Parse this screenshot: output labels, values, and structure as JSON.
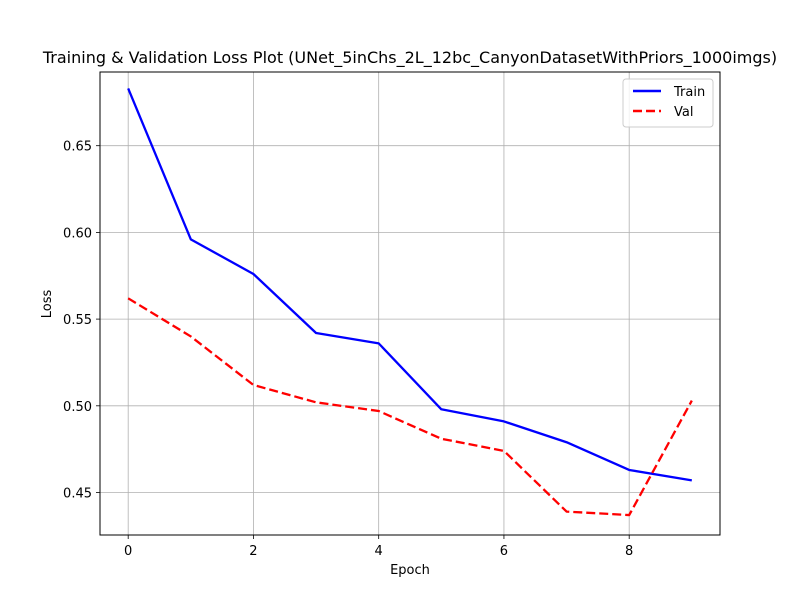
{
  "chart_data": {
    "type": "line",
    "title": "Training & Validation Loss Plot (UNet_5inChs_2L_12bc_CanyonDatasetWithPriors_1000imgs)",
    "xlabel": "Epoch",
    "ylabel": "Loss",
    "xlim": [
      -0.45,
      9.45
    ],
    "ylim": [
      0.4255,
      0.6925
    ],
    "xticks": [
      0,
      2,
      4,
      6,
      8
    ],
    "yticks": [
      0.45,
      0.5,
      0.55,
      0.6,
      0.65
    ],
    "ytick_labels": [
      "0.45",
      "0.50",
      "0.55",
      "0.60",
      "0.65"
    ],
    "grid": true,
    "legend_position": "upper right",
    "x": [
      0,
      1,
      2,
      3,
      4,
      5,
      6,
      7,
      8,
      9
    ],
    "series": [
      {
        "name": "Train",
        "color": "#0000ff",
        "style": "solid",
        "values": [
          0.683,
          0.596,
          0.576,
          0.542,
          0.536,
          0.498,
          0.491,
          0.479,
          0.463,
          0.457
        ]
      },
      {
        "name": "Val",
        "color": "#ff0000",
        "style": "dashed",
        "values": [
          0.562,
          0.54,
          0.512,
          0.502,
          0.497,
          0.481,
          0.474,
          0.439,
          0.437,
          0.503
        ]
      }
    ]
  }
}
